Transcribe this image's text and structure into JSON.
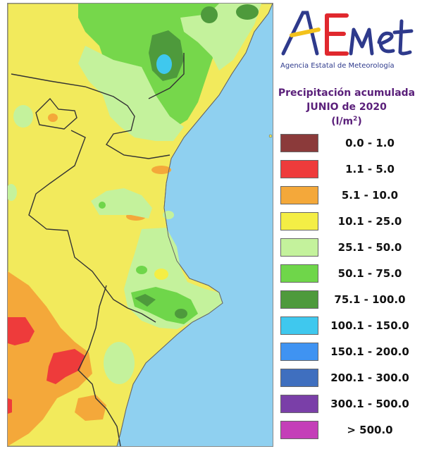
{
  "agency": {
    "name": "Agencia Estatal de Meteorología"
  },
  "logo": {
    "colors": {
      "blue": "#2e3a8c",
      "red": "#e0282e",
      "yellow": "#f3c21b"
    }
  },
  "map": {
    "sea_color": "#8fd0f0",
    "land_base_color": "#f2ea5c"
  },
  "legend": {
    "title_line1": "Precipitación acumulada",
    "title_line2": "JUNIO de 2020",
    "unit_prefix": "(l/m",
    "unit_sup": "2",
    "unit_suffix": ")",
    "items": [
      {
        "label": "0.0 - 1.0",
        "color": "#8b3a3a"
      },
      {
        "label": "1.1 - 5.0",
        "color": "#ee3b3b"
      },
      {
        "label": "5.1 - 10.0",
        "color": "#f4a83a"
      },
      {
        "label": "10.1 - 25.0",
        "color": "#f4ee45"
      },
      {
        "label": "25.1 - 50.0",
        "color": "#c4f29c"
      },
      {
        "label": "50.1 - 75.0",
        "color": "#6fd64a"
      },
      {
        "label": "75.1 - 100.0",
        "color": "#4e9a3c"
      },
      {
        "label": "100.1 - 150.0",
        "color": "#3fc8ee"
      },
      {
        "label": "150.1 - 200.0",
        "color": "#3f93f2"
      },
      {
        "label": "200.1 - 300.0",
        "color": "#3f6fbf"
      },
      {
        "label": "300.1 - 500.0",
        "color": "#7a3fa8"
      },
      {
        "label": "> 500.0",
        "color": "#c43fb8"
      }
    ]
  }
}
